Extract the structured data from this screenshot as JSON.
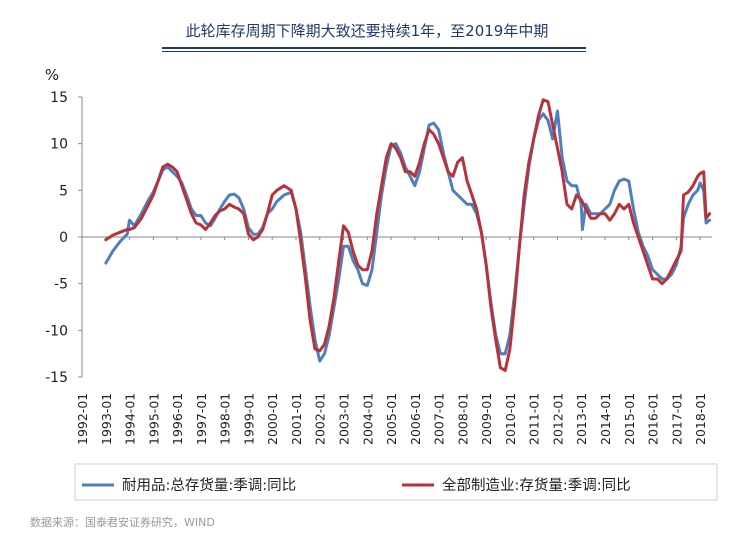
{
  "header": {
    "title": "此轮库存周期下降期大致还要持续1年，至2019年中期"
  },
  "footer": {
    "source": "数据来源：国泰君安证券研究，WIND"
  },
  "colors": {
    "series_1": "#4f7fbe",
    "series_2": "#b7333a",
    "title": "#1f3a6e"
  },
  "chart_data": {
    "type": "line",
    "title": "此轮库存周期下降期大致还要持续1年，至2019年中期",
    "ylabel": "%",
    "ylim": [
      -15,
      15
    ],
    "yticks": [
      -15,
      -10,
      -5,
      0,
      5,
      10,
      15
    ],
    "xlim": [
      1992.0,
      2018.5
    ],
    "xticks": [
      "1992-01",
      "1993-01",
      "1994-01",
      "1995-01",
      "1996-01",
      "1997-01",
      "1998-01",
      "1999-01",
      "2000-01",
      "2001-01",
      "2002-01",
      "2003-01",
      "2004-01",
      "2005-01",
      "2006-01",
      "2007-01",
      "2008-01",
      "2009-01",
      "2010-01",
      "2011-01",
      "2012-01",
      "2013-01",
      "2014-01",
      "2015-01",
      "2016-01",
      "2017-01",
      "2018-01"
    ],
    "legend_position": "bottom",
    "series": [
      {
        "name": "耐用品:总存货量:季调:同比",
        "color": "#4f7fbe",
        "points": [
          [
            1993.0,
            -2.8
          ],
          [
            1993.3,
            -1.5
          ],
          [
            1993.6,
            -0.5
          ],
          [
            1993.9,
            0.3
          ],
          [
            1994.0,
            1.8
          ],
          [
            1994.2,
            1.2
          ],
          [
            1994.5,
            2.5
          ],
          [
            1994.8,
            4.0
          ],
          [
            1995.0,
            4.8
          ],
          [
            1995.2,
            6.0
          ],
          [
            1995.4,
            7.2
          ],
          [
            1995.6,
            7.5
          ],
          [
            1995.8,
            7.0
          ],
          [
            1996.0,
            6.5
          ],
          [
            1996.2,
            5.8
          ],
          [
            1996.4,
            4.5
          ],
          [
            1996.6,
            3.0
          ],
          [
            1996.8,
            2.3
          ],
          [
            1997.0,
            2.3
          ],
          [
            1997.2,
            1.5
          ],
          [
            1997.4,
            1.2
          ],
          [
            1997.6,
            2.0
          ],
          [
            1997.8,
            3.0
          ],
          [
            1998.0,
            3.8
          ],
          [
            1998.2,
            4.5
          ],
          [
            1998.4,
            4.6
          ],
          [
            1998.6,
            4.2
          ],
          [
            1998.8,
            3.0
          ],
          [
            1999.0,
            1.0
          ],
          [
            1999.2,
            0.3
          ],
          [
            1999.4,
            0.3
          ],
          [
            1999.6,
            1.0
          ],
          [
            1999.8,
            2.5
          ],
          [
            2000.0,
            3.0
          ],
          [
            2000.2,
            3.8
          ],
          [
            2000.5,
            4.5
          ],
          [
            2000.8,
            4.8
          ],
          [
            2001.0,
            3.0
          ],
          [
            2001.2,
            0.5
          ],
          [
            2001.4,
            -3.5
          ],
          [
            2001.6,
            -7.5
          ],
          [
            2001.8,
            -11.0
          ],
          [
            2002.0,
            -13.3
          ],
          [
            2002.2,
            -12.5
          ],
          [
            2002.4,
            -10.5
          ],
          [
            2002.6,
            -7.5
          ],
          [
            2002.8,
            -4.5
          ],
          [
            2003.0,
            -1.0
          ],
          [
            2003.2,
            -1.0
          ],
          [
            2003.4,
            -2.5
          ],
          [
            2003.6,
            -3.5
          ],
          [
            2003.8,
            -5.0
          ],
          [
            2004.0,
            -5.2
          ],
          [
            2004.2,
            -3.5
          ],
          [
            2004.4,
            0.5
          ],
          [
            2004.6,
            4.5
          ],
          [
            2004.8,
            7.5
          ],
          [
            2005.0,
            9.8
          ],
          [
            2005.2,
            10.0
          ],
          [
            2005.4,
            9.0
          ],
          [
            2005.6,
            7.5
          ],
          [
            2005.8,
            6.5
          ],
          [
            2006.0,
            5.5
          ],
          [
            2006.2,
            7.0
          ],
          [
            2006.4,
            9.5
          ],
          [
            2006.6,
            12.0
          ],
          [
            2006.8,
            12.2
          ],
          [
            2007.0,
            11.5
          ],
          [
            2007.2,
            9.0
          ],
          [
            2007.4,
            7.0
          ],
          [
            2007.6,
            5.0
          ],
          [
            2007.8,
            4.5
          ],
          [
            2008.0,
            4.0
          ],
          [
            2008.2,
            3.5
          ],
          [
            2008.4,
            3.5
          ],
          [
            2008.6,
            2.5
          ],
          [
            2008.8,
            0.5
          ],
          [
            2009.0,
            -3.0
          ],
          [
            2009.2,
            -7.0
          ],
          [
            2009.4,
            -10.5
          ],
          [
            2009.6,
            -12.5
          ],
          [
            2009.8,
            -12.5
          ],
          [
            2010.0,
            -10.5
          ],
          [
            2010.2,
            -6.0
          ],
          [
            2010.4,
            -1.0
          ],
          [
            2010.6,
            3.5
          ],
          [
            2010.8,
            7.5
          ],
          [
            2011.0,
            10.5
          ],
          [
            2011.2,
            12.5
          ],
          [
            2011.4,
            13.2
          ],
          [
            2011.6,
            12.5
          ],
          [
            2011.8,
            10.5
          ],
          [
            2012.0,
            13.5
          ],
          [
            2012.2,
            8.5
          ],
          [
            2012.4,
            6.0
          ],
          [
            2012.6,
            5.5
          ],
          [
            2012.8,
            5.5
          ],
          [
            2013.0,
            3.5
          ],
          [
            2013.05,
            0.8
          ],
          [
            2013.2,
            3.5
          ],
          [
            2013.4,
            2.5
          ],
          [
            2013.6,
            2.5
          ],
          [
            2013.8,
            2.5
          ],
          [
            2014.0,
            3.0
          ],
          [
            2014.2,
            3.5
          ],
          [
            2014.4,
            5.0
          ],
          [
            2014.6,
            6.0
          ],
          [
            2014.8,
            6.2
          ],
          [
            2015.0,
            6.0
          ],
          [
            2015.2,
            3.0
          ],
          [
            2015.4,
            0.5
          ],
          [
            2015.6,
            -1.0
          ],
          [
            2015.8,
            -2.0
          ],
          [
            2016.0,
            -3.5
          ],
          [
            2016.2,
            -4.0
          ],
          [
            2016.4,
            -4.5
          ],
          [
            2016.6,
            -4.5
          ],
          [
            2016.8,
            -4.0
          ],
          [
            2017.0,
            -3.0
          ],
          [
            2017.2,
            -1.0
          ],
          [
            2017.3,
            2.0
          ],
          [
            2017.5,
            3.5
          ],
          [
            2017.7,
            4.5
          ],
          [
            2017.9,
            5.0
          ],
          [
            2018.0,
            5.8
          ],
          [
            2018.15,
            5.0
          ],
          [
            2018.25,
            1.5
          ],
          [
            2018.4,
            1.8
          ]
        ]
      },
      {
        "name": "全部制造业:存货量:季调:同比",
        "color": "#b7333a",
        "points": [
          [
            1993.0,
            -0.3
          ],
          [
            1993.3,
            0.2
          ],
          [
            1993.6,
            0.5
          ],
          [
            1993.9,
            0.8
          ],
          [
            1994.0,
            0.8
          ],
          [
            1994.2,
            1.0
          ],
          [
            1994.5,
            2.0
          ],
          [
            1994.8,
            3.5
          ],
          [
            1995.0,
            4.5
          ],
          [
            1995.2,
            6.0
          ],
          [
            1995.4,
            7.5
          ],
          [
            1995.6,
            7.8
          ],
          [
            1995.8,
            7.5
          ],
          [
            1996.0,
            7.0
          ],
          [
            1996.2,
            5.5
          ],
          [
            1996.4,
            4.0
          ],
          [
            1996.6,
            2.5
          ],
          [
            1996.8,
            1.5
          ],
          [
            1997.0,
            1.3
          ],
          [
            1997.2,
            0.8
          ],
          [
            1997.4,
            1.5
          ],
          [
            1997.6,
            2.3
          ],
          [
            1997.8,
            2.8
          ],
          [
            1998.0,
            3.0
          ],
          [
            1998.2,
            3.5
          ],
          [
            1998.4,
            3.2
          ],
          [
            1998.6,
            3.0
          ],
          [
            1998.8,
            2.5
          ],
          [
            1999.0,
            0.3
          ],
          [
            1999.2,
            -0.3
          ],
          [
            1999.4,
            0.0
          ],
          [
            1999.6,
            0.8
          ],
          [
            1999.8,
            2.5
          ],
          [
            2000.0,
            4.5
          ],
          [
            2000.2,
            5.0
          ],
          [
            2000.5,
            5.5
          ],
          [
            2000.8,
            5.0
          ],
          [
            2001.0,
            3.0
          ],
          [
            2001.2,
            -0.5
          ],
          [
            2001.4,
            -4.5
          ],
          [
            2001.6,
            -9.0
          ],
          [
            2001.8,
            -12.0
          ],
          [
            2002.0,
            -12.2
          ],
          [
            2002.2,
            -11.5
          ],
          [
            2002.4,
            -9.5
          ],
          [
            2002.6,
            -6.5
          ],
          [
            2002.8,
            -2.5
          ],
          [
            2003.0,
            1.2
          ],
          [
            2003.2,
            0.5
          ],
          [
            2003.4,
            -1.5
          ],
          [
            2003.6,
            -3.0
          ],
          [
            2003.8,
            -3.5
          ],
          [
            2004.0,
            -3.5
          ],
          [
            2004.2,
            -1.5
          ],
          [
            2004.4,
            2.5
          ],
          [
            2004.6,
            5.5
          ],
          [
            2004.8,
            8.5
          ],
          [
            2005.0,
            10.0
          ],
          [
            2005.2,
            9.5
          ],
          [
            2005.4,
            8.5
          ],
          [
            2005.6,
            7.0
          ],
          [
            2005.8,
            7.0
          ],
          [
            2006.0,
            6.5
          ],
          [
            2006.2,
            8.0
          ],
          [
            2006.4,
            10.0
          ],
          [
            2006.6,
            11.5
          ],
          [
            2006.8,
            11.0
          ],
          [
            2007.0,
            10.0
          ],
          [
            2007.2,
            8.5
          ],
          [
            2007.4,
            7.0
          ],
          [
            2007.6,
            6.5
          ],
          [
            2007.8,
            8.0
          ],
          [
            2008.0,
            8.5
          ],
          [
            2008.2,
            6.0
          ],
          [
            2008.4,
            4.5
          ],
          [
            2008.6,
            3.0
          ],
          [
            2008.8,
            0.5
          ],
          [
            2009.0,
            -3.0
          ],
          [
            2009.2,
            -7.5
          ],
          [
            2009.4,
            -11.0
          ],
          [
            2009.6,
            -14.0
          ],
          [
            2009.8,
            -14.3
          ],
          [
            2010.0,
            -12.0
          ],
          [
            2010.2,
            -7.0
          ],
          [
            2010.4,
            -1.0
          ],
          [
            2010.6,
            4.5
          ],
          [
            2010.8,
            8.0
          ],
          [
            2011.0,
            10.5
          ],
          [
            2011.2,
            13.0
          ],
          [
            2011.4,
            14.7
          ],
          [
            2011.6,
            14.5
          ],
          [
            2011.8,
            12.0
          ],
          [
            2012.0,
            9.5
          ],
          [
            2012.2,
            7.0
          ],
          [
            2012.4,
            3.5
          ],
          [
            2012.6,
            3.0
          ],
          [
            2012.8,
            4.5
          ],
          [
            2013.0,
            4.0
          ],
          [
            2013.2,
            3.0
          ],
          [
            2013.4,
            2.0
          ],
          [
            2013.6,
            2.0
          ],
          [
            2013.8,
            2.5
          ],
          [
            2014.0,
            2.5
          ],
          [
            2014.2,
            1.8
          ],
          [
            2014.4,
            2.5
          ],
          [
            2014.6,
            3.5
          ],
          [
            2014.8,
            3.0
          ],
          [
            2015.0,
            3.5
          ],
          [
            2015.2,
            1.5
          ],
          [
            2015.4,
            0.0
          ],
          [
            2015.6,
            -1.5
          ],
          [
            2015.8,
            -3.0
          ],
          [
            2016.0,
            -4.5
          ],
          [
            2016.2,
            -4.5
          ],
          [
            2016.4,
            -5.0
          ],
          [
            2016.6,
            -4.5
          ],
          [
            2016.8,
            -3.5
          ],
          [
            2017.0,
            -2.5
          ],
          [
            2017.2,
            -1.5
          ],
          [
            2017.3,
            4.5
          ],
          [
            2017.5,
            4.8
          ],
          [
            2017.7,
            5.5
          ],
          [
            2017.9,
            6.5
          ],
          [
            2018.0,
            6.8
          ],
          [
            2018.15,
            7.0
          ],
          [
            2018.25,
            2.0
          ],
          [
            2018.4,
            2.5
          ]
        ]
      }
    ]
  }
}
